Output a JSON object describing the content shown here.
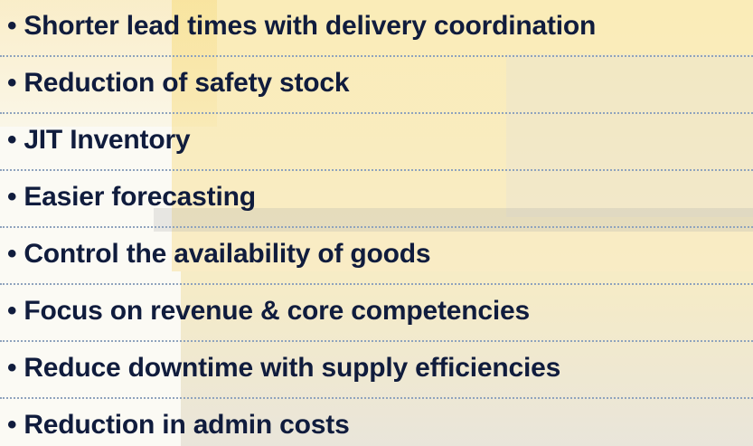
{
  "items": [
    "Shorter lead times with delivery coordination",
    "Reduction of safety stock",
    "JIT Inventory",
    "Easier forecasting",
    "Control the availability of goods",
    "Focus on revenue & core competencies",
    "Reduce downtime with supply efficiencies",
    "Reduction in admin costs"
  ]
}
